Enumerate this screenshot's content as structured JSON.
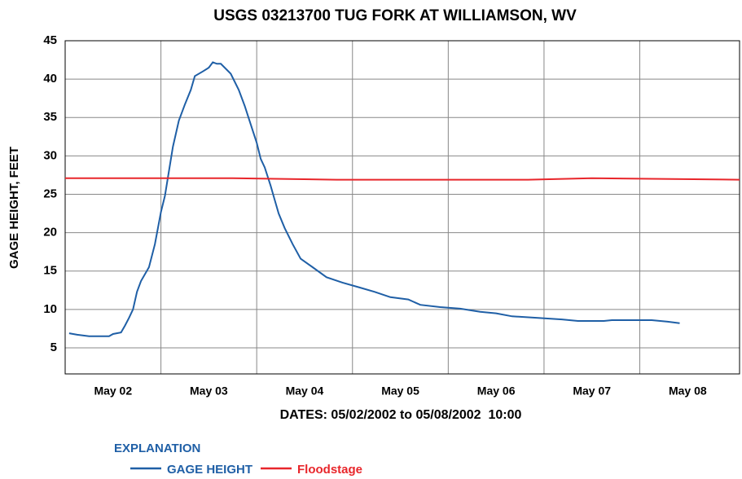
{
  "chart_data": {
    "type": "line",
    "title": "USGS 03213700 TUG FORK AT WILLIAMSON, WV",
    "xlabel": "DATES: 05/02/2002 to 05/08/2002  10:00",
    "ylabel": "GAGE HEIGHT, FEET",
    "legend_title": "EXPLANATION",
    "xlim": [
      "2002-05-02T00:00",
      "2002-05-09T01:00"
    ],
    "xticks": [
      {
        "value": "2002-05-02T12:00",
        "label": "May 02"
      },
      {
        "value": "2002-05-03T12:00",
        "label": "May 03"
      },
      {
        "value": "2002-05-04T12:00",
        "label": "May 04"
      },
      {
        "value": "2002-05-05T12:00",
        "label": "May 05"
      },
      {
        "value": "2002-05-06T12:00",
        "label": "May 06"
      },
      {
        "value": "2002-05-07T12:00",
        "label": "May 07"
      },
      {
        "value": "2002-05-08T12:00",
        "label": "May 08"
      }
    ],
    "xgrid": [
      "2002-05-03T00:00",
      "2002-05-04T00:00",
      "2002-05-05T00:00",
      "2002-05-06T00:00",
      "2002-05-07T00:00",
      "2002-05-08T00:00"
    ],
    "ylim": [
      1.6,
      45
    ],
    "yticks": [
      5,
      10,
      15,
      20,
      25,
      30,
      35,
      40,
      45
    ],
    "grid": true,
    "series": [
      {
        "name": "GAGE HEIGHT",
        "color": "#1f5fa6",
        "x": [
          "2002-05-02T01:00",
          "2002-05-02T03:00",
          "2002-05-02T06:00",
          "2002-05-02T08:00",
          "2002-05-02T11:00",
          "2002-05-02T12:00",
          "2002-05-02T14:00",
          "2002-05-02T15:00",
          "2002-05-02T16:00",
          "2002-05-02T17:00",
          "2002-05-02T18:00",
          "2002-05-02T19:00",
          "2002-05-02T21:00",
          "2002-05-02T22:30",
          "2002-05-03T00:00",
          "2002-05-03T01:00",
          "2002-05-03T02:00",
          "2002-05-03T03:00",
          "2002-05-03T04:30",
          "2002-05-03T06:00",
          "2002-05-03T07:30",
          "2002-05-03T08:30",
          "2002-05-03T10:30",
          "2002-05-03T12:00",
          "2002-05-03T13:00",
          "2002-05-03T14:00",
          "2002-05-03T15:00",
          "2002-05-03T17:30",
          "2002-05-03T19:30",
          "2002-05-03T21:00",
          "2002-05-03T23:00",
          "2002-05-04T00:00",
          "2002-05-04T01:00",
          "2002-05-04T02:00",
          "2002-05-04T03:30",
          "2002-05-04T04:30",
          "2002-05-04T05:30",
          "2002-05-04T07:00",
          "2002-05-04T09:00",
          "2002-05-04T11:00",
          "2002-05-04T14:00",
          "2002-05-04T17:30",
          "2002-05-04T21:30",
          "2002-05-05T01:30",
          "2002-05-05T05:30",
          "2002-05-05T09:30",
          "2002-05-05T14:00",
          "2002-05-05T17:00",
          "2002-05-05T22:00",
          "2002-05-06T03:00",
          "2002-05-06T08:00",
          "2002-05-06T12:00",
          "2002-05-06T16:00",
          "2002-05-06T22:30",
          "2002-05-07T04:30",
          "2002-05-07T08:30",
          "2002-05-07T15:00",
          "2002-05-07T17:00",
          "2002-05-07T21:00",
          "2002-05-08T03:00",
          "2002-05-08T07:00",
          "2002-05-08T10:00"
        ],
        "values": [
          6.9,
          6.7,
          6.5,
          6.5,
          6.5,
          6.8,
          7.0,
          7.9,
          8.9,
          10.0,
          12.3,
          13.7,
          15.5,
          18.5,
          22.7,
          24.8,
          28.0,
          31.2,
          34.6,
          36.7,
          38.6,
          40.4,
          41.0,
          41.5,
          42.2,
          42.0,
          42.0,
          40.7,
          38.6,
          36.5,
          33.3,
          31.7,
          29.6,
          28.5,
          26.1,
          24.3,
          22.5,
          20.6,
          18.5,
          16.6,
          15.5,
          14.2,
          13.5,
          12.9,
          12.3,
          11.6,
          11.3,
          10.6,
          10.3,
          10.1,
          9.7,
          9.5,
          9.1,
          8.9,
          8.7,
          8.5,
          8.5,
          8.6,
          8.6,
          8.6,
          8.4,
          8.2
        ]
      },
      {
        "name": "Floodstage",
        "color": "#e8262b",
        "x": [
          "2002-05-02T00:00",
          "2002-05-03T18:00",
          "2002-05-04T20:00",
          "2002-05-06T20:00",
          "2002-05-07T12:00",
          "2002-05-09T01:00"
        ],
        "values": [
          27.1,
          27.1,
          26.9,
          26.9,
          27.1,
          26.9
        ]
      }
    ]
  }
}
